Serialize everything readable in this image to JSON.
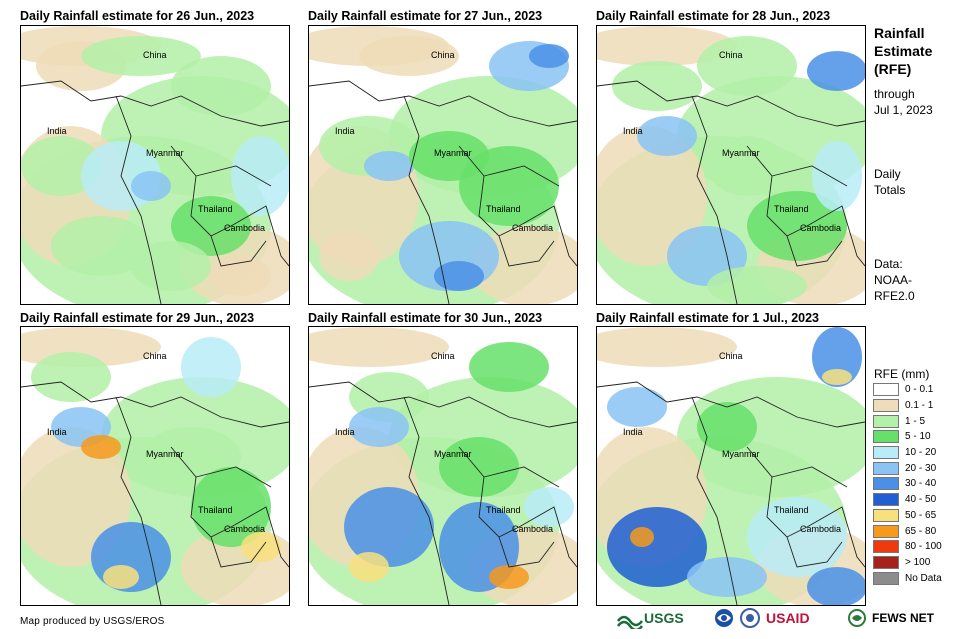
{
  "panels": [
    {
      "title": "Daily Rainfall estimate for 26 Jun., 2023"
    },
    {
      "title": "Daily Rainfall estimate for 27 Jun., 2023"
    },
    {
      "title": "Daily Rainfall estimate for 28 Jun., 2023"
    },
    {
      "title": "Daily Rainfall estimate for 29 Jun., 2023"
    },
    {
      "title": "Daily Rainfall estimate for 30 Jun., 2023"
    },
    {
      "title": "Daily Rainfall estimate for 1 Jul., 2023"
    }
  ],
  "places": {
    "china": "China",
    "india": "India",
    "myanmar": "Myanmar",
    "thailand": "Thailand",
    "cambodia": "Cambodia"
  },
  "sidebar": {
    "title_line1": "Rainfall",
    "title_line2": "Estimate",
    "title_line3": "(RFE)",
    "through_line1": "through",
    "through_line2": "Jul 1, 2023",
    "daily_line1": "Daily",
    "daily_line2": "Totals",
    "data_line1": "Data:",
    "data_line2": "NOAA-",
    "data_line3": "RFE2.0"
  },
  "legend": {
    "title": "RFE (mm)",
    "items": [
      {
        "label": "0 - 0.1",
        "color": "#ffffff"
      },
      {
        "label": "0.1 - 1",
        "color": "#efdcb9"
      },
      {
        "label": "1 - 5",
        "color": "#b3f0a8"
      },
      {
        "label": "5 - 10",
        "color": "#66e06a"
      },
      {
        "label": "10 - 20",
        "color": "#b8ecf7"
      },
      {
        "label": "20 - 30",
        "color": "#8ac3f4"
      },
      {
        "label": "30 - 40",
        "color": "#4a90e6"
      },
      {
        "label": "40 - 50",
        "color": "#1f5fd1"
      },
      {
        "label": "50 - 65",
        "color": "#f8e07e"
      },
      {
        "label": "65 - 80",
        "color": "#f59a1c"
      },
      {
        "label": "80 - 100",
        "color": "#f03a0e"
      },
      {
        "label": "> 100",
        "color": "#a8201a"
      },
      {
        "label": "No Data",
        "color": "#8c8c8c"
      }
    ]
  },
  "footer": {
    "credit": "Map produced by USGS/EROS",
    "logo_usgs": "USGS",
    "logo_usaid": "USAID",
    "logo_fews": "FEWS NET"
  }
}
